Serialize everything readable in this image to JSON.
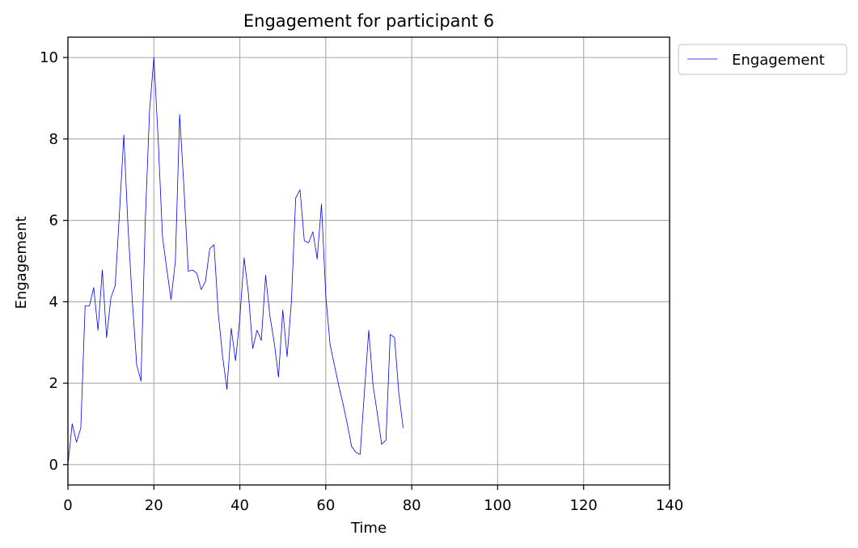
{
  "chart_data": {
    "type": "line",
    "title": "Engagement for participant 6",
    "xlabel": "Time",
    "ylabel": "Engagement",
    "xlim": [
      0,
      140
    ],
    "ylim": [
      -0.5,
      10.5
    ],
    "xticks": [
      0,
      20,
      40,
      60,
      80,
      100,
      120,
      140
    ],
    "yticks": [
      0,
      2,
      4,
      6,
      8,
      10
    ],
    "grid": true,
    "legend": "outside-top-right",
    "series": [
      {
        "name": "Engagement",
        "color": "#0000ff",
        "x": [
          0,
          1,
          2,
          3,
          4,
          5,
          6,
          7,
          8,
          9,
          10,
          11,
          12,
          13,
          14,
          15,
          16,
          17,
          18,
          19,
          20,
          21,
          22,
          23,
          24,
          25,
          26,
          27,
          28,
          29,
          30,
          31,
          32,
          33,
          34,
          35,
          36,
          37,
          38,
          39,
          40,
          41,
          42,
          43,
          44,
          45,
          46,
          47,
          48,
          49,
          50,
          51,
          52,
          53,
          54,
          55,
          56,
          57,
          58,
          59,
          60,
          61,
          62,
          63,
          64,
          65,
          66,
          67,
          68,
          69,
          70,
          71,
          72,
          73,
          74,
          75,
          76,
          77,
          78
        ],
        "y": [
          0,
          1.0,
          0.55,
          0.9,
          3.9,
          3.9,
          4.35,
          3.3,
          4.78,
          3.12,
          4.1,
          4.4,
          6.2,
          8.1,
          5.8,
          4.0,
          2.45,
          2.05,
          6.0,
          8.7,
          10.0,
          8.0,
          5.6,
          4.8,
          4.05,
          5.0,
          8.6,
          6.8,
          4.75,
          4.78,
          4.7,
          4.3,
          4.5,
          5.3,
          5.4,
          3.7,
          2.65,
          1.85,
          3.35,
          2.55,
          3.6,
          5.08,
          4.2,
          2.85,
          3.3,
          3.05,
          4.65,
          3.65,
          3.0,
          2.15,
          3.8,
          2.65,
          4.0,
          6.55,
          6.75,
          5.5,
          5.45,
          5.72,
          5.05,
          6.4,
          4.15,
          2.95,
          2.45,
          1.95,
          1.5,
          1.0,
          0.45,
          0.3,
          0.25,
          1.8,
          3.3,
          1.95,
          1.25,
          0.5,
          0.6,
          3.2,
          3.12,
          1.75,
          0.9
        ]
      }
    ]
  }
}
